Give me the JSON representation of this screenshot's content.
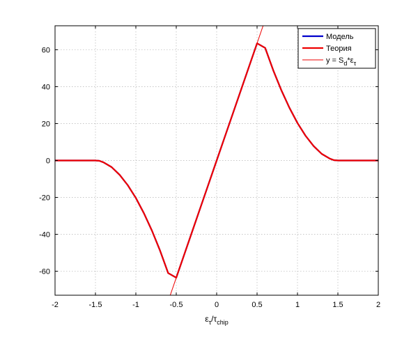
{
  "chart_data": {
    "type": "line",
    "xlabel": {
      "base": "ε",
      "sub": "τ",
      "sep": "/",
      "base2": "τ",
      "sub2": "chip"
    },
    "xlim": [
      -2,
      2
    ],
    "ylim": [
      -73,
      73
    ],
    "xticks": [
      -2,
      -1.5,
      -1,
      -0.5,
      0,
      0.5,
      1,
      1.5,
      2
    ],
    "xtick_labels": [
      "-2",
      "-1.5",
      "-1",
      "-0.5",
      "0",
      "0.5",
      "1",
      "1.5",
      "2"
    ],
    "yticks": [
      -60,
      -40,
      -20,
      0,
      20,
      40,
      60
    ],
    "ytick_labels": [
      "-60",
      "-40",
      "-20",
      "0",
      "20",
      "40",
      "60"
    ],
    "grid": true,
    "legend_position": "top-right",
    "series": [
      {
        "name": "Модель",
        "color": "#0000cc",
        "style": "thick",
        "x": [
          -2,
          -1.5,
          -1.45,
          -1.4,
          -1.3,
          -1.2,
          -1.1,
          -1.0,
          -0.9,
          -0.8,
          -0.7,
          -0.6,
          -0.5,
          -0.4,
          -0.3,
          -0.2,
          -0.1,
          0,
          0.1,
          0.2,
          0.3,
          0.4,
          0.5,
          0.6,
          0.7,
          0.8,
          0.9,
          1.0,
          1.1,
          1.2,
          1.3,
          1.4,
          1.45,
          1.5,
          2
        ],
        "y": [
          0,
          0,
          -0.2,
          -1,
          -3.6,
          -7.8,
          -13.4,
          -20.3,
          -28.6,
          -38.1,
          -48.9,
          -61,
          -63.5,
          -50.8,
          -38.1,
          -25.4,
          -12.7,
          0,
          12.7,
          25.4,
          38.1,
          50.8,
          63.5,
          61,
          48.9,
          38.1,
          28.6,
          20.3,
          13.4,
          7.8,
          3.6,
          1,
          0.2,
          0,
          0
        ]
      },
      {
        "name": "Теория",
        "color": "#ee0000",
        "style": "thick",
        "x": [
          -2,
          -1.5,
          -1.45,
          -1.4,
          -1.3,
          -1.2,
          -1.1,
          -1.0,
          -0.9,
          -0.8,
          -0.7,
          -0.6,
          -0.5,
          -0.4,
          -0.3,
          -0.2,
          -0.1,
          0,
          0.1,
          0.2,
          0.3,
          0.4,
          0.5,
          0.6,
          0.7,
          0.8,
          0.9,
          1.0,
          1.1,
          1.2,
          1.3,
          1.4,
          1.45,
          1.5,
          2
        ],
        "y": [
          0,
          0,
          -0.2,
          -1,
          -3.6,
          -7.8,
          -13.4,
          -20.3,
          -28.6,
          -38.1,
          -48.9,
          -61,
          -63.5,
          -50.8,
          -38.1,
          -25.4,
          -12.7,
          0,
          12.7,
          25.4,
          38.1,
          50.8,
          63.5,
          61,
          48.9,
          38.1,
          28.6,
          20.3,
          13.4,
          7.8,
          3.6,
          1,
          0.2,
          0,
          0
        ]
      },
      {
        "name": "y = S_d*ε_τ",
        "label": {
          "pre": "y = S",
          "sub": "d",
          "mid": "*ε",
          "sub2": "τ"
        },
        "color": "#ee0000",
        "style": "thin",
        "x": [
          -0.58,
          0.58
        ],
        "y": [
          -73.7,
          73.7
        ]
      }
    ]
  }
}
